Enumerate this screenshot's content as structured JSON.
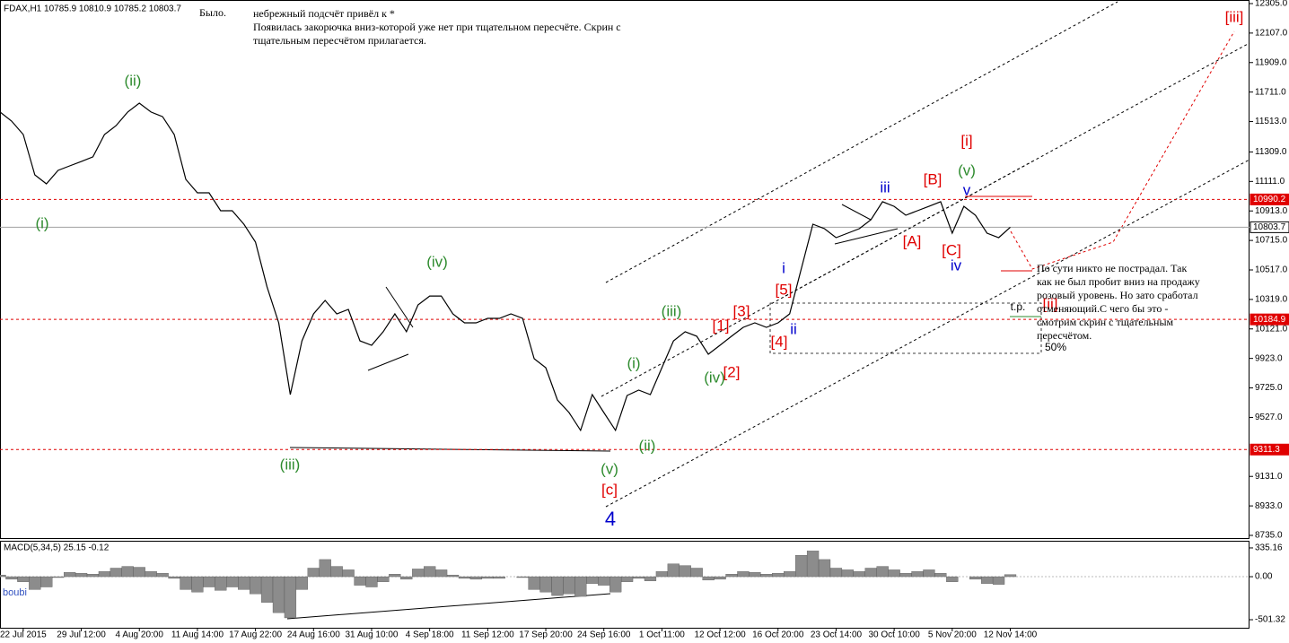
{
  "header": "FDAX,H1  10785.9 10810.9 10785.2 10803.7",
  "chart_data": [
    {
      "type": "line",
      "color": "#000000",
      "values": [
        11577,
        11516,
        11426,
        11155,
        11095,
        11185,
        11215,
        11245,
        11276,
        11426,
        11486,
        11577,
        11637,
        11577,
        11546,
        11426,
        11125,
        11035,
        11035,
        10914,
        10914,
        10824,
        10704,
        10403,
        10162,
        9680,
        10041,
        10222,
        10312,
        10222,
        10252,
        10041,
        10011,
        10102,
        10222,
        10102,
        10282,
        10342,
        10342,
        10222,
        10162,
        10162,
        10192,
        10192,
        10222,
        10192,
        9921,
        9861,
        9644,
        9560,
        9440,
        9680,
        9560,
        9440,
        9674,
        9710,
        9680,
        9861,
        10041,
        10102,
        10072,
        9951,
        10011,
        10072,
        10132,
        10162,
        10132,
        10162,
        10222,
        10523,
        10824,
        10794,
        10734,
        10764,
        10794,
        10854,
        10975,
        10944,
        10884,
        10914,
        10944,
        10975,
        10764,
        10944,
        10884,
        10764,
        10734,
        10803.7
      ],
      "xlim": [
        0,
        107.6
      ],
      "ylim": [
        8717,
        12329
      ],
      "xticks": [
        {
          "value": 2,
          "label": "22 Jul 2015"
        },
        {
          "value": 7,
          "label": "29 Jul 12:00"
        },
        {
          "value": 12,
          "label": "4 Aug 20:00"
        },
        {
          "value": 17,
          "label": "11 Aug 14:00"
        },
        {
          "value": 22,
          "label": "17 Aug 22:00"
        },
        {
          "value": 27,
          "label": "24 Aug 16:00"
        },
        {
          "value": 32,
          "label": "31 Aug 10:00"
        },
        {
          "value": 37,
          "label": "4 Sep 18:00"
        },
        {
          "value": 42,
          "label": "11 Sep 12:00"
        },
        {
          "value": 47,
          "label": "17 Sep 20:00"
        },
        {
          "value": 52,
          "label": "24 Sep 16:00"
        },
        {
          "value": 57,
          "label": "1 Oct 11:00"
        },
        {
          "value": 62,
          "label": "12 Oct 12:00"
        },
        {
          "value": 67,
          "label": "16 Oct 20:00"
        },
        {
          "value": 72,
          "label": "23 Oct 14:00"
        },
        {
          "value": 77,
          "label": "30 Oct 10:00"
        },
        {
          "value": 82,
          "label": "5 Nov 20:00"
        },
        {
          "value": 87,
          "label": "12 Nov 14:00"
        }
      ],
      "yticks": [
        {
          "value": 12305,
          "label": "12305.0"
        },
        {
          "value": 12107,
          "label": "12107.0"
        },
        {
          "value": 11909,
          "label": "11909.0"
        },
        {
          "value": 11711,
          "label": "11711.0"
        },
        {
          "value": 11513,
          "label": "11513.0"
        },
        {
          "value": 11309,
          "label": "11309.0"
        },
        {
          "value": 11111,
          "label": "11111.0"
        },
        {
          "value": 10913,
          "label": "10913.0"
        },
        {
          "value": 10715,
          "label": "10715.0"
        },
        {
          "value": 10517,
          "label": "10517.0"
        },
        {
          "value": 10319,
          "label": "10319.0"
        },
        {
          "value": 10121,
          "label": "10121.0"
        },
        {
          "value": 9923,
          "label": "9923.0"
        },
        {
          "value": 9725,
          "label": "9725.0"
        },
        {
          "value": 9527,
          "label": "9527.0"
        },
        {
          "value": 9131,
          "label": "9131.0"
        },
        {
          "value": 8933,
          "label": "8933.0"
        },
        {
          "value": 8735,
          "label": "8735.0"
        }
      ],
      "levels": [
        {
          "value": 10990.2,
          "color": "#e00000",
          "style": "dashed"
        },
        {
          "value": 10803.7,
          "color": "#a0a0a0",
          "style": "solid"
        },
        {
          "value": 10184.9,
          "color": "#e00000",
          "style": "dashed"
        },
        {
          "value": 9311.3,
          "color": "#e00000",
          "style": "dashed"
        }
      ],
      "annotations": [
        {
          "text": "(ii)",
          "color": "#2e8b2e"
        },
        {
          "text": "(i)",
          "color": "#2e8b2e"
        },
        {
          "text": "(iii)",
          "color": "#2e8b2e"
        },
        {
          "text": "(iv)",
          "color": "#2e8b2e"
        },
        {
          "text": "(v)",
          "color": "#2e8b2e"
        },
        {
          "text": "[c]",
          "color": "#e00000"
        },
        {
          "text": "4",
          "color": "#0000cc"
        },
        {
          "text": "(i)",
          "color": "#2e8b2e"
        },
        {
          "text": "(ii)",
          "color": "#2e8b2e"
        },
        {
          "text": "(iii)",
          "color": "#2e8b2e"
        },
        {
          "text": "(iv)",
          "color": "#2e8b2e"
        },
        {
          "text": "[1]",
          "color": "#e00000"
        },
        {
          "text": "[2]",
          "color": "#e00000"
        },
        {
          "text": "[3]",
          "color": "#e00000"
        },
        {
          "text": "[4]",
          "color": "#e00000"
        },
        {
          "text": "[5]",
          "color": "#e00000"
        },
        {
          "text": "i",
          "color": "#0000cc"
        },
        {
          "text": "ii",
          "color": "#0000cc"
        },
        {
          "text": "iii",
          "color": "#0000cc"
        },
        {
          "text": "[A]",
          "color": "#e00000"
        },
        {
          "text": "[B]",
          "color": "#e00000"
        },
        {
          "text": "[C]",
          "color": "#e00000"
        },
        {
          "text": "iv",
          "color": "#0000cc"
        },
        {
          "text": "v",
          "color": "#0000cc"
        },
        {
          "text": "(v)",
          "color": "#2e8b2e"
        },
        {
          "text": "[i]",
          "color": "#e00000"
        },
        {
          "text": "[ii]",
          "color": "#e00000"
        },
        {
          "text": "[iii]",
          "color": "#e00000"
        },
        {
          "text": "t.p.",
          "color": "#000000"
        },
        {
          "text": "50%",
          "color": "#000000"
        }
      ],
      "notes": [
        [
          "Было."
        ],
        [
          "небрежный подсчёт привёл к *",
          "Появилась закорючка вниз-которой уже нет при тщательном пересчёте. Скрин с",
          "тщательным пересчётом прилагается."
        ],
        [
          "По сути никто не пострадал. Так",
          "как не был пробит вниз на продажу",
          "розовый уровень. Но зато сработал",
          "отменяющий.С чего бы это -",
          "смотрим скрин с тщательным",
          "пересчётом."
        ]
      ]
    },
    {
      "type": "bar",
      "title": "MACD(5,34,5) 25.15 -0.12",
      "color": "#8c8c8c",
      "watermark": "boubi",
      "values": [
        20,
        -30,
        -60,
        -150,
        -120,
        -10,
        50,
        40,
        30,
        60,
        100,
        120,
        110,
        60,
        40,
        -20,
        -150,
        -180,
        -120,
        -160,
        -120,
        -150,
        -200,
        -300,
        -420,
        -480,
        -150,
        100,
        200,
        120,
        80,
        -100,
        -120,
        -60,
        30,
        -30,
        90,
        120,
        80,
        20,
        -20,
        -30,
        -20,
        -20,
        0,
        -10,
        -150,
        -180,
        -220,
        -200,
        -230,
        -80,
        -100,
        -180,
        -60,
        -20,
        -50,
        60,
        150,
        130,
        100,
        -40,
        -30,
        30,
        60,
        50,
        30,
        40,
        60,
        250,
        300,
        200,
        100,
        80,
        60,
        100,
        120,
        80,
        40,
        60,
        80,
        40,
        -60,
        0,
        -30,
        -80,
        -90,
        25.15
      ],
      "ylim": [
        -595,
        408
      ],
      "yticks": [
        {
          "value": 335.16,
          "label": "335.16"
        },
        {
          "value": 0,
          "label": "0.00"
        },
        {
          "value": -501.32,
          "label": "-501.32"
        }
      ]
    }
  ]
}
